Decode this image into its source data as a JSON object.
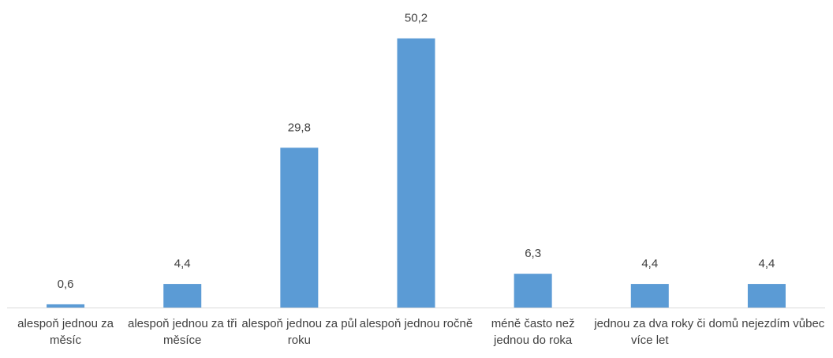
{
  "chart_data": {
    "type": "bar",
    "categories": [
      "alespoň jednou za měsíc",
      "alespoň jednou za tři měsíce",
      "alespoň jednou za půl roku",
      "alespoň jednou ročně",
      "méně často než jednou do roka",
      "jednou za dva roky či více let",
      "domů nejezdím vůbec"
    ],
    "values": [
      0.6,
      4.4,
      29.8,
      50.2,
      6.3,
      4.4,
      4.4
    ],
    "value_labels": [
      "0,6",
      "4,4",
      "29,8",
      "50,2",
      "6,3",
      "4,4",
      "4,4"
    ],
    "color": "#5b9bd5"
  }
}
